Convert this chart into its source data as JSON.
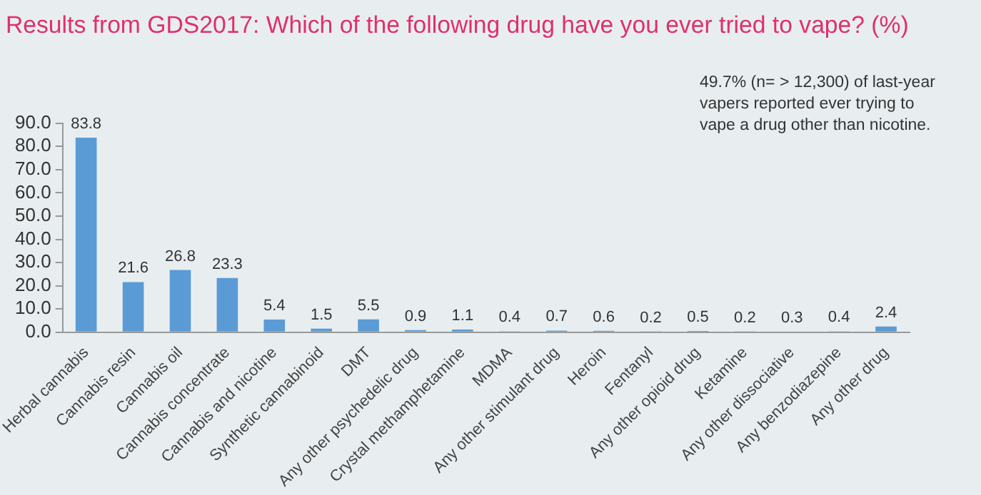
{
  "chart_data": {
    "type": "bar",
    "title": "Results from GDS2017: Which of the following drug have you ever tried to vape? (%)",
    "categories": [
      "Herbal cannabis",
      "Cannabis resin",
      "Cannabis oil",
      "Cannabis concentrate",
      "Cannabis and nicotine",
      "Synthetic cannabinoid",
      "DMT",
      "Any other psychedelic drug",
      "Crystal methamphetamine",
      "MDMA",
      "Any other stimulant drug",
      "Heroin",
      "Fentanyl",
      "Any other opioid drug",
      "Ketamine",
      "Any other dissociative",
      "Any benzodiazepine",
      "Any other drug"
    ],
    "values": [
      83.8,
      21.6,
      26.8,
      23.3,
      5.4,
      1.5,
      5.5,
      0.9,
      1.1,
      0.4,
      0.7,
      0.6,
      0.2,
      0.5,
      0.2,
      0.3,
      0.4,
      2.4
    ],
    "color": "#5b9bd5",
    "ylim": [
      0,
      90
    ],
    "yticks": [
      {
        "value": 0,
        "label": "0.0"
      },
      {
        "value": 10,
        "label": "10.0"
      },
      {
        "value": 20,
        "label": "20.0"
      },
      {
        "value": 30,
        "label": "30.0"
      },
      {
        "value": 40,
        "label": "40.0"
      },
      {
        "value": 50,
        "label": "50.0"
      },
      {
        "value": 60,
        "label": "60.0"
      },
      {
        "value": 70,
        "label": "70.0"
      },
      {
        "value": 80,
        "label": "80.0"
      },
      {
        "value": 90,
        "label": "90.0"
      }
    ],
    "data_labels": true,
    "grid": false,
    "legend": false,
    "annotations": [
      "49.7% (n= > 12,300) of last-year vapers reported ever trying to vape a drug other than nicotine."
    ]
  }
}
